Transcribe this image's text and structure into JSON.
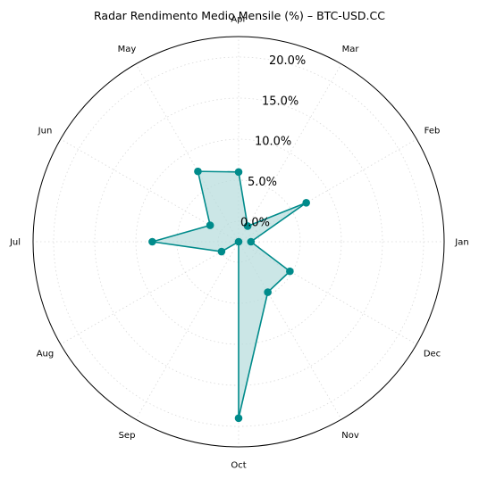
{
  "chart_data": {
    "type": "radar",
    "title": "Radar Rendimento Medio Mensile (%) – BTC-USD.CC",
    "categories": [
      "Jan",
      "Feb",
      "Mar",
      "Apr",
      "May",
      "Jun",
      "Jul",
      "Aug",
      "Sep",
      "Oct",
      "Nov",
      "Dec"
    ],
    "series": [
      {
        "values": [
          -1.0,
          7.0,
          -0.3,
          6.0,
          7.4,
          1.5,
          8.0,
          -0.1,
          -2.5,
          19.0,
          4.6,
          4.7
        ],
        "color": "#008b8b",
        "fill": "#b5dcdc"
      }
    ],
    "rlim": [
      -2.5,
      22.5
    ],
    "rticks": [
      0,
      5,
      10,
      15,
      20
    ],
    "rtick_labels": [
      "0.0%",
      "5.0%",
      "10.0%",
      "15.0%",
      "20.0%"
    ],
    "grid": true
  }
}
